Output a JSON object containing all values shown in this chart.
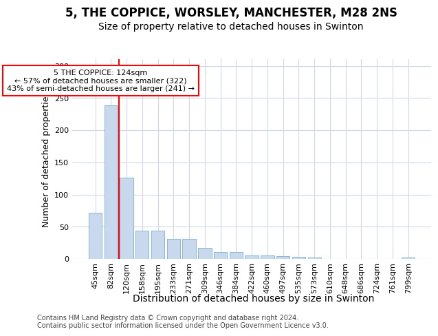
{
  "title": "5, THE COPPICE, WORSLEY, MANCHESTER, M28 2NS",
  "subtitle": "Size of property relative to detached houses in Swinton",
  "xlabel": "Distribution of detached houses by size in Swinton",
  "ylabel": "Number of detached properties",
  "categories": [
    "45sqm",
    "82sqm",
    "120sqm",
    "158sqm",
    "195sqm",
    "233sqm",
    "271sqm",
    "309sqm",
    "346sqm",
    "384sqm",
    "422sqm",
    "460sqm",
    "497sqm",
    "535sqm",
    "573sqm",
    "610sqm",
    "648sqm",
    "686sqm",
    "724sqm",
    "761sqm",
    "799sqm"
  ],
  "values": [
    72,
    239,
    126,
    44,
    44,
    31,
    31,
    17,
    11,
    11,
    6,
    6,
    4,
    3,
    2,
    0,
    0,
    0,
    0,
    0,
    2
  ],
  "bar_color": "#c8d8ed",
  "bar_edge_color": "#7aafd4",
  "red_line_index": 2,
  "annotation_text": "5 THE COPPICE: 124sqm\n← 57% of detached houses are smaller (322)\n43% of semi-detached houses are larger (241) →",
  "ylim": [
    0,
    310
  ],
  "yticks": [
    0,
    50,
    100,
    150,
    200,
    250,
    300
  ],
  "footer": "Contains HM Land Registry data © Crown copyright and database right 2024.\nContains public sector information licensed under the Open Government Licence v3.0.",
  "title_fontsize": 12,
  "subtitle_fontsize": 10,
  "xlabel_fontsize": 10,
  "ylabel_fontsize": 9,
  "tick_fontsize": 8,
  "footer_fontsize": 7,
  "background_color": "#ffffff",
  "plot_background": "#ffffff",
  "grid_color": "#d0d8e8"
}
